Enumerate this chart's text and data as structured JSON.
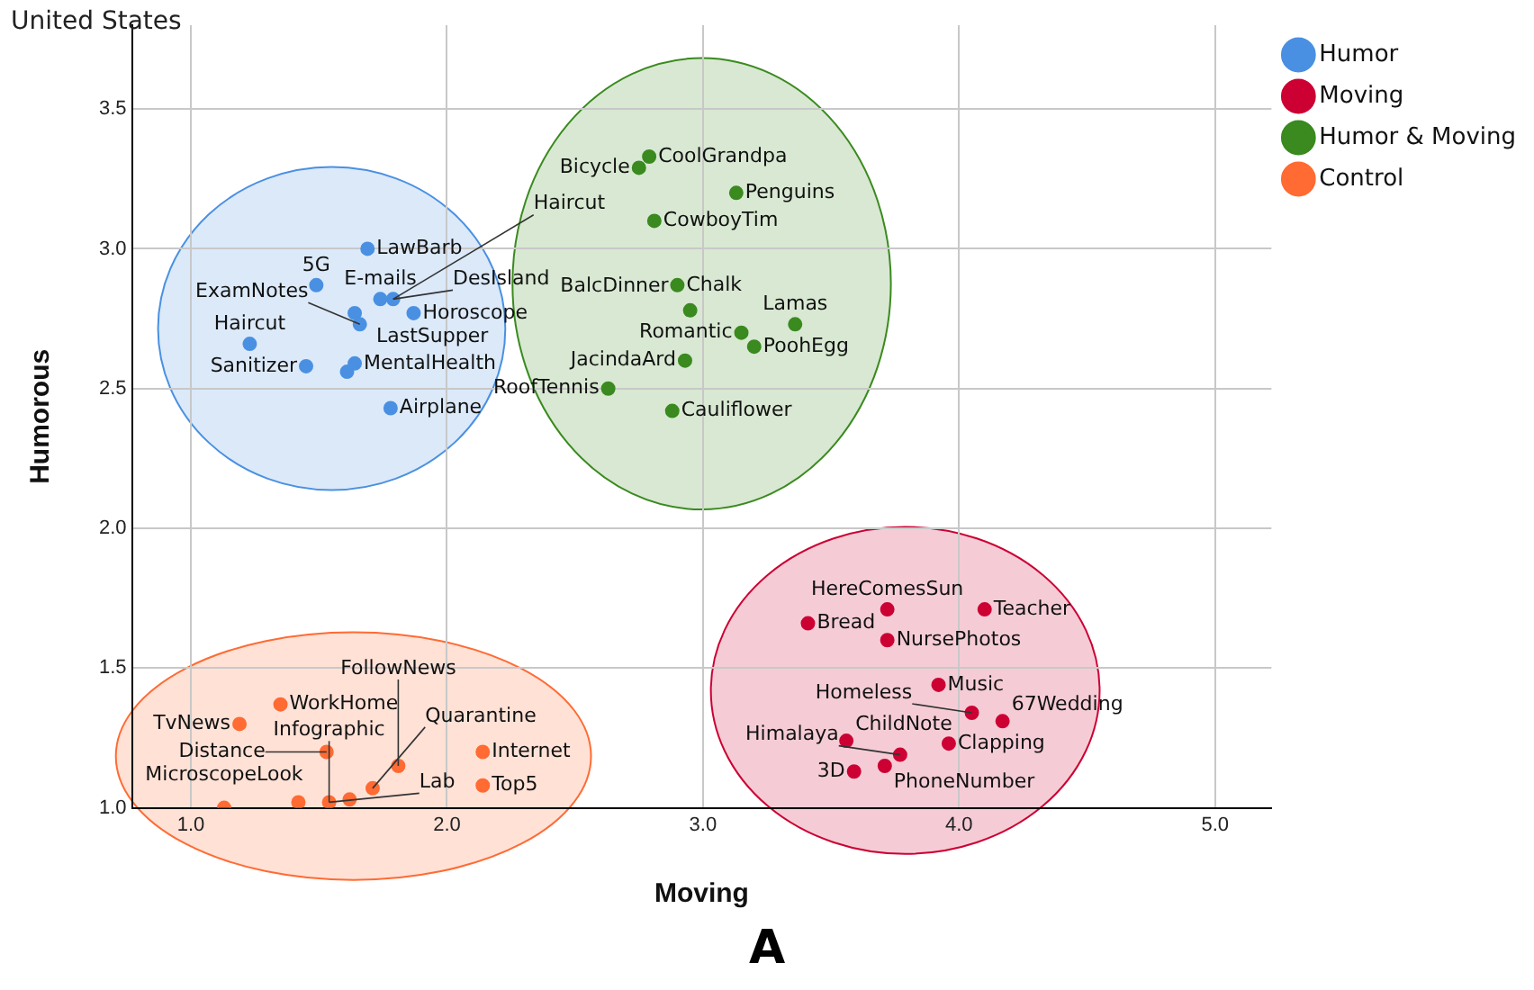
{
  "chart_data": {
    "type": "scatter",
    "title": "United States",
    "xlabel": "Moving",
    "ylabel": "Humorous",
    "annotations": [
      "A",
      {
        "text": "LawBarb",
        "x": 1.69,
        "y": 3.0
      },
      {
        "text": "5G",
        "x": 1.49,
        "y": 2.87
      },
      {
        "text": "E-mails",
        "x": 1.74,
        "y": 2.82
      },
      {
        "text": "DesIsland",
        "x": 1.79,
        "y": 2.82
      },
      {
        "text": "Haircut",
        "x": 1.79,
        "y": 2.82
      },
      {
        "text": "Horoscope",
        "x": 1.87,
        "y": 2.77
      },
      {
        "text": "LastSupper",
        "x": 1.64,
        "y": 2.77
      },
      {
        "text": "ExamNotes",
        "x": 1.66,
        "y": 2.73
      },
      {
        "text": "Haircut",
        "x": 1.23,
        "y": 2.66
      },
      {
        "text": "Sanitizer",
        "x": 1.45,
        "y": 2.58
      },
      {
        "text": "MentalHealth",
        "x": 1.64,
        "y": 2.59
      },
      {
        "text": "Airplane",
        "x": 1.78,
        "y": 2.43
      },
      {
        "text": "Bread",
        "x": 3.41,
        "y": 1.66
      },
      {
        "text": "HereComesSun",
        "x": 3.72,
        "y": 1.71
      },
      {
        "text": "Teacher",
        "x": 4.1,
        "y": 1.71
      },
      {
        "text": "NursePhotos",
        "x": 3.72,
        "y": 1.6
      },
      {
        "text": "Music",
        "x": 3.92,
        "y": 1.44
      },
      {
        "text": "Homeless",
        "x": 4.05,
        "y": 1.34
      },
      {
        "text": "67Wedding",
        "x": 4.17,
        "y": 1.31
      },
      {
        "text": "ChildNote",
        "x": 3.56,
        "y": 1.24
      },
      {
        "text": "Himalaya",
        "x": 3.77,
        "y": 1.19
      },
      {
        "text": "Clapping",
        "x": 3.96,
        "y": 1.23
      },
      {
        "text": "3D",
        "x": 3.59,
        "y": 1.13
      },
      {
        "text": "PhoneNumber",
        "x": 3.71,
        "y": 1.15
      },
      {
        "text": "CoolGrandpa",
        "x": 2.79,
        "y": 3.33
      },
      {
        "text": "Bicycle",
        "x": 2.75,
        "y": 3.29
      },
      {
        "text": "Penguins",
        "x": 3.13,
        "y": 3.2
      },
      {
        "text": "CowboyTim",
        "x": 2.81,
        "y": 3.1
      },
      {
        "text": "Chalk",
        "x": 2.9,
        "y": 2.87
      },
      {
        "text": "BalcDinner",
        "x": 2.95,
        "y": 2.78
      },
      {
        "text": "Lamas",
        "x": 3.36,
        "y": 2.73
      },
      {
        "text": "Romantic",
        "x": 3.15,
        "y": 2.7
      },
      {
        "text": "PoohEgg",
        "x": 3.2,
        "y": 2.65
      },
      {
        "text": "JacindaArd",
        "x": 2.93,
        "y": 2.6
      },
      {
        "text": "RoofTennis",
        "x": 2.63,
        "y": 2.5
      },
      {
        "text": "Cauliflower",
        "x": 2.88,
        "y": 2.42
      },
      {
        "text": "TvNews",
        "x": 1.19,
        "y": 1.3
      },
      {
        "text": "WorkHome",
        "x": 1.35,
        "y": 1.37
      },
      {
        "text": "Distance",
        "x": 1.53,
        "y": 1.2
      },
      {
        "text": "FollowNews",
        "x": 1.81,
        "y": 1.15
      },
      {
        "text": "Internet",
        "x": 2.14,
        "y": 1.2
      },
      {
        "text": "Top5",
        "x": 2.14,
        "y": 1.08
      },
      {
        "text": "Quarantine",
        "x": 1.71,
        "y": 1.07
      },
      {
        "text": "Infographic",
        "x": 1.54,
        "y": 1.02
      },
      {
        "text": "Lab",
        "x": 1.54,
        "y": 1.02
      },
      {
        "text": "MicroscopeLook",
        "x": 1.13,
        "y": 1.0
      }
    ],
    "xlim": [
      0.77,
      5.22
    ],
    "ylim": [
      1.0,
      3.8
    ],
    "xticks": [
      {
        "value": 1,
        "label": "1.0"
      },
      {
        "value": 2,
        "label": "2.0"
      },
      {
        "value": 3,
        "label": "3.0"
      },
      {
        "value": 4,
        "label": "4.0"
      },
      {
        "value": 5,
        "label": "5.0"
      }
    ],
    "yticks": [
      {
        "value": 1,
        "label": "1.0"
      },
      {
        "value": 1.5,
        "label": "1.5"
      },
      {
        "value": 2,
        "label": "2.0"
      },
      {
        "value": 2.5,
        "label": "2.5"
      },
      {
        "value": 3,
        "label": "3.0"
      },
      {
        "value": 3.5,
        "label": "3.5"
      }
    ],
    "grid": true,
    "legend": "top right",
    "marker": "circle",
    "series": [
      {
        "name": "Humor",
        "color": "#4a90e2",
        "x": [
          1.69,
          1.49,
          1.74,
          1.79,
          1.87,
          1.64,
          1.66,
          1.23,
          1.45,
          1.61,
          1.64,
          1.78
        ],
        "values": [
          3.0,
          2.87,
          2.82,
          2.82,
          2.77,
          2.77,
          2.73,
          2.66,
          2.58,
          2.56,
          2.59,
          2.43
        ]
      },
      {
        "name": "Moving",
        "color": "#cc0033",
        "x": [
          3.41,
          3.72,
          4.1,
          3.72,
          3.92,
          4.05,
          4.17,
          3.56,
          3.77,
          3.96,
          3.59,
          3.71
        ],
        "values": [
          1.66,
          1.71,
          1.71,
          1.6,
          1.44,
          1.34,
          1.31,
          1.24,
          1.19,
          1.23,
          1.13,
          1.15
        ]
      },
      {
        "name": "Humor & Moving",
        "color": "#3a8a1f",
        "x": [
          2.79,
          2.75,
          3.13,
          2.81,
          2.9,
          2.95,
          3.36,
          3.15,
          3.2,
          2.93,
          2.63,
          2.88
        ],
        "values": [
          3.33,
          3.29,
          3.2,
          3.1,
          2.87,
          2.78,
          2.73,
          2.7,
          2.65,
          2.6,
          2.5,
          2.42
        ]
      },
      {
        "name": "Control",
        "color": "#ff6b33",
        "x": [
          1.19,
          1.35,
          1.53,
          1.81,
          2.14,
          2.14,
          1.71,
          1.62,
          1.54,
          1.42,
          1.13
        ],
        "values": [
          1.3,
          1.37,
          1.2,
          1.15,
          1.2,
          1.08,
          1.07,
          1.03,
          1.02,
          1.02,
          1.0
        ]
      }
    ]
  }
}
